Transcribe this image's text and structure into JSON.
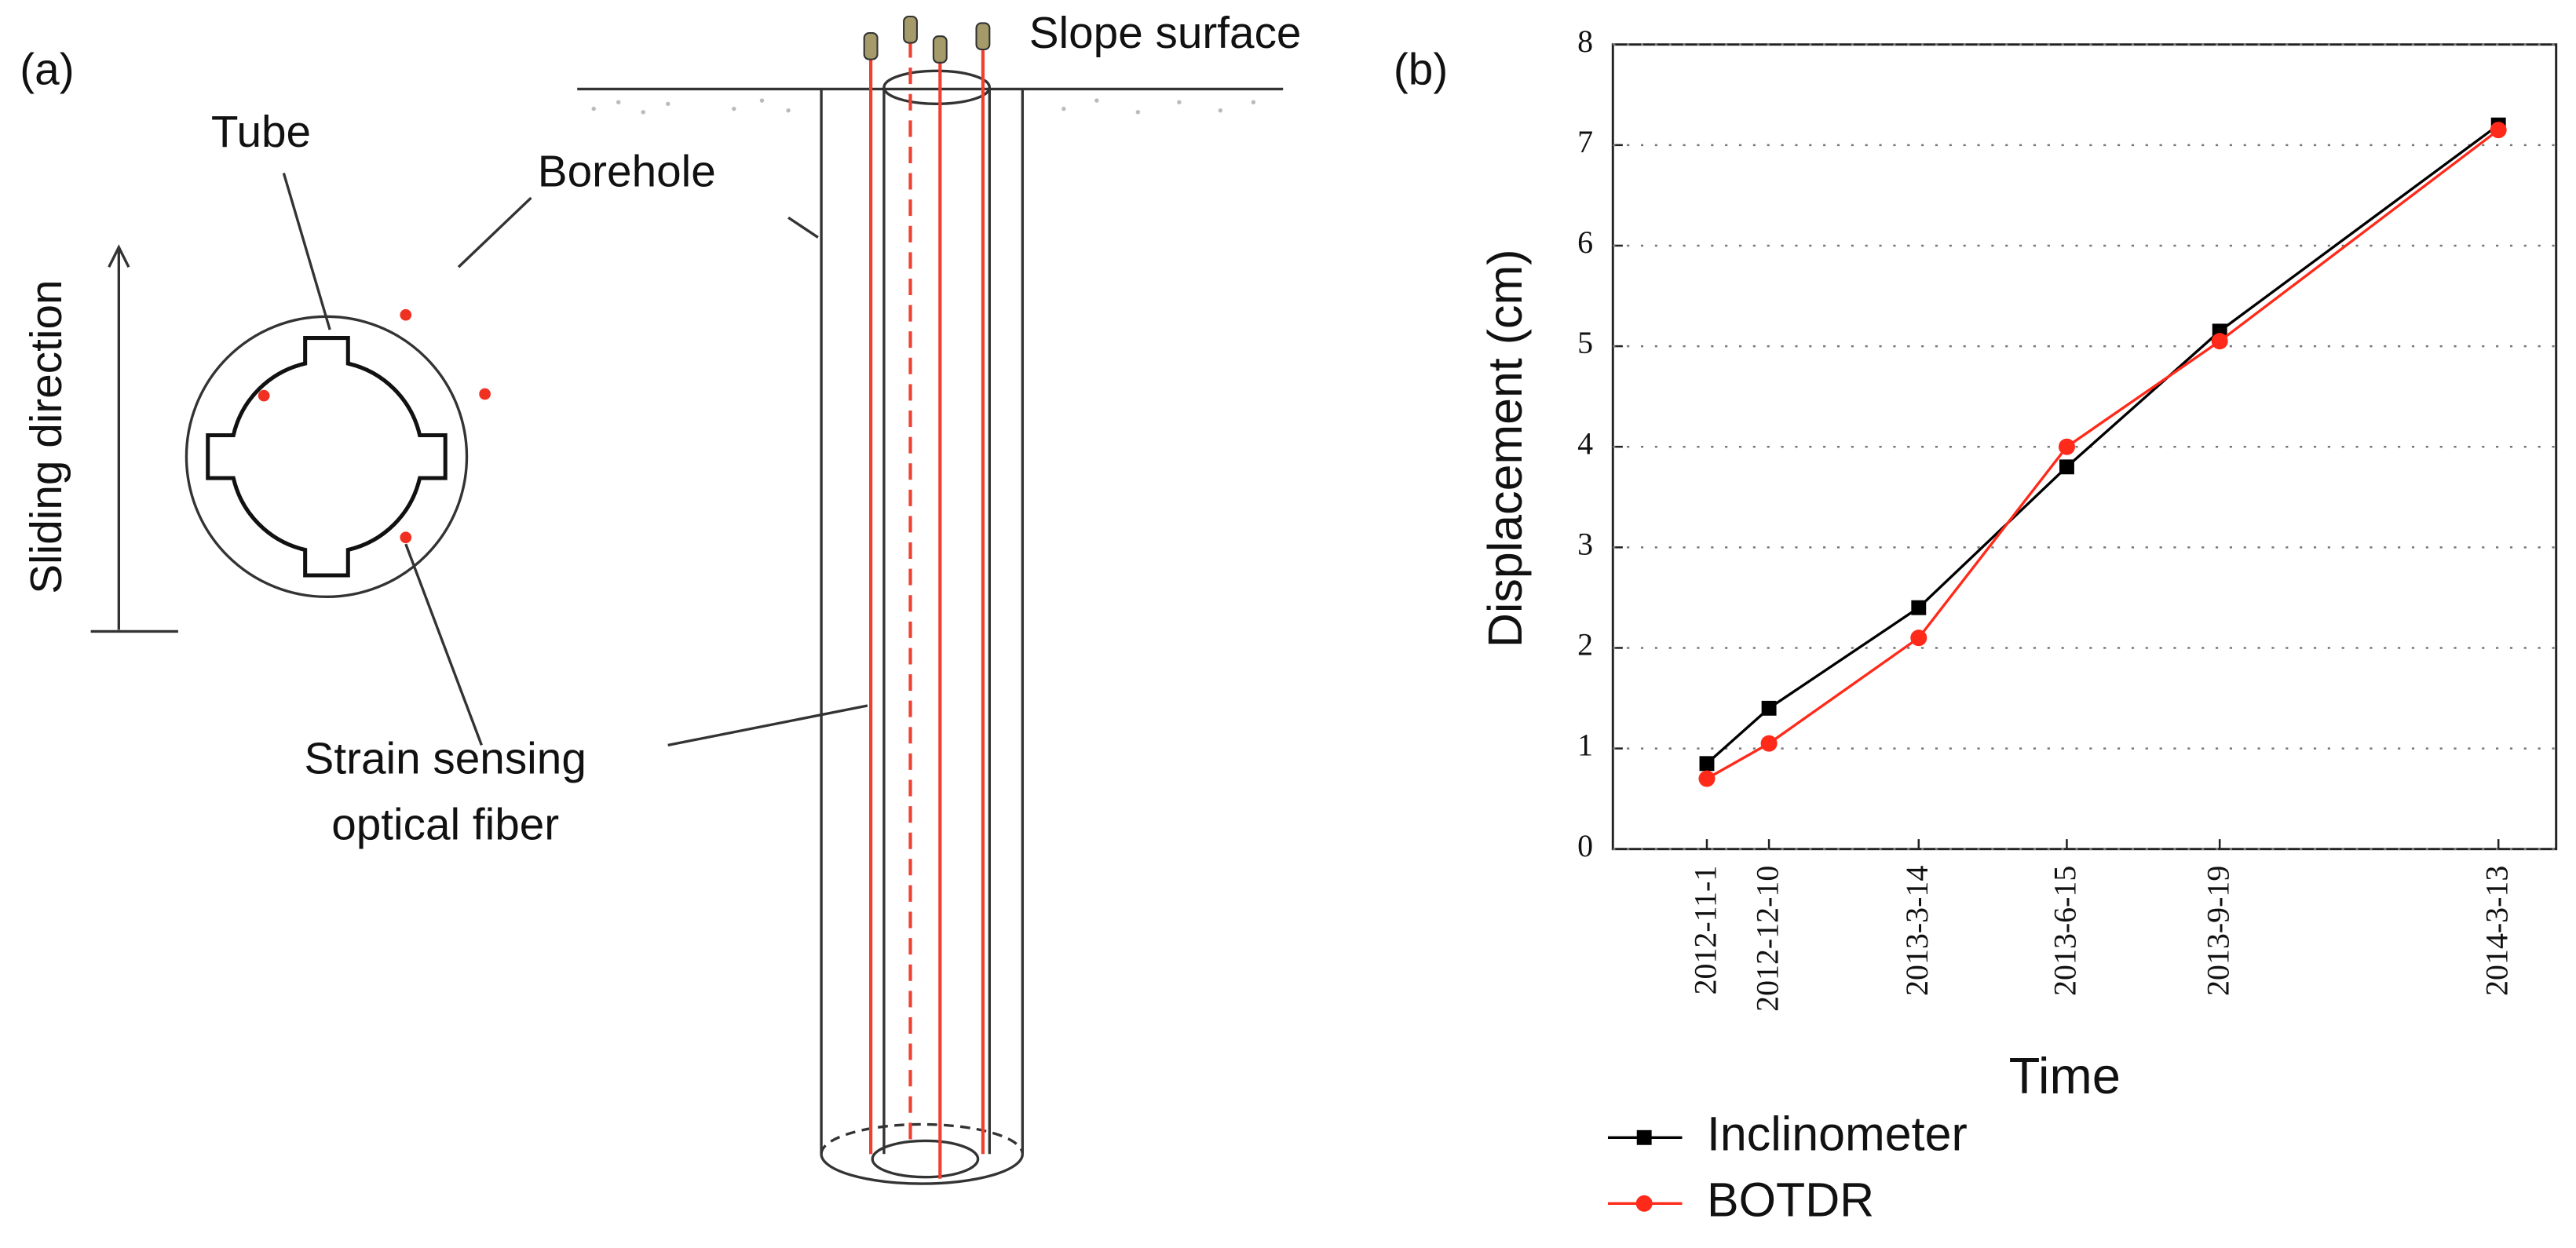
{
  "diagram": {
    "panel_label": "(a)",
    "tube": "Tube",
    "borehole": "Borehole",
    "sliding": "Sliding direction",
    "fiber_line1": "Strain sensing",
    "fiber_line2": "optical fiber",
    "surface": "Slope surface"
  },
  "chart_data": {
    "type": "line",
    "panel_label": "(b)",
    "xlabel": "Time",
    "ylabel": "Displacement (cm)",
    "x": [
      "2012-11-1",
      "2012-12-10",
      "2013-3-14",
      "2013-6-15",
      "2013-9-19",
      "2014-3-13"
    ],
    "series": [
      {
        "name": "Inclinometer",
        "color": "#000000",
        "marker": "square",
        "values": [
          0.85,
          1.4,
          2.4,
          3.8,
          5.15,
          7.2
        ]
      },
      {
        "name": "BOTDR",
        "color": "#ff2a1a",
        "marker": "circle",
        "values": [
          0.7,
          1.05,
          2.1,
          4.0,
          5.05,
          7.15
        ]
      }
    ],
    "ylim": [
      0,
      8
    ],
    "yticks": [
      0,
      1,
      2,
      3,
      4,
      5,
      6,
      7,
      8
    ],
    "grid": true
  }
}
